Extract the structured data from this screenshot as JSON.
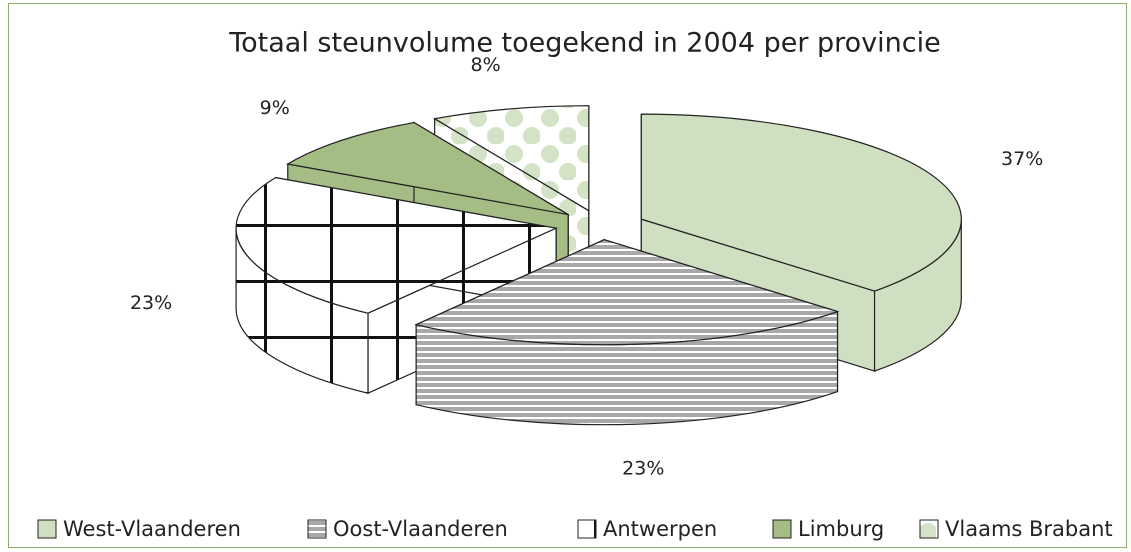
{
  "chart_data": {
    "type": "pie3d",
    "title": "Totaal steunvolume toegekend in 2004 per provincie",
    "categories": [
      "West-Vlaanderen",
      "Oost-Vlaanderen",
      "Antwerpen",
      "Limburg",
      "Vlaams Brabant"
    ],
    "values": [
      37,
      23,
      23,
      9,
      8
    ],
    "value_labels": [
      "37%",
      "23%",
      "23%",
      "9%",
      "8%"
    ],
    "colors": [
      "#cfdfc1",
      "#a8a8a8",
      "#ffffff",
      "#a3bd84",
      "#d4e3c6"
    ],
    "patterns": [
      "none",
      "horizontal-stripes",
      "grid",
      "none",
      "dots"
    ],
    "legend": "bottom"
  }
}
